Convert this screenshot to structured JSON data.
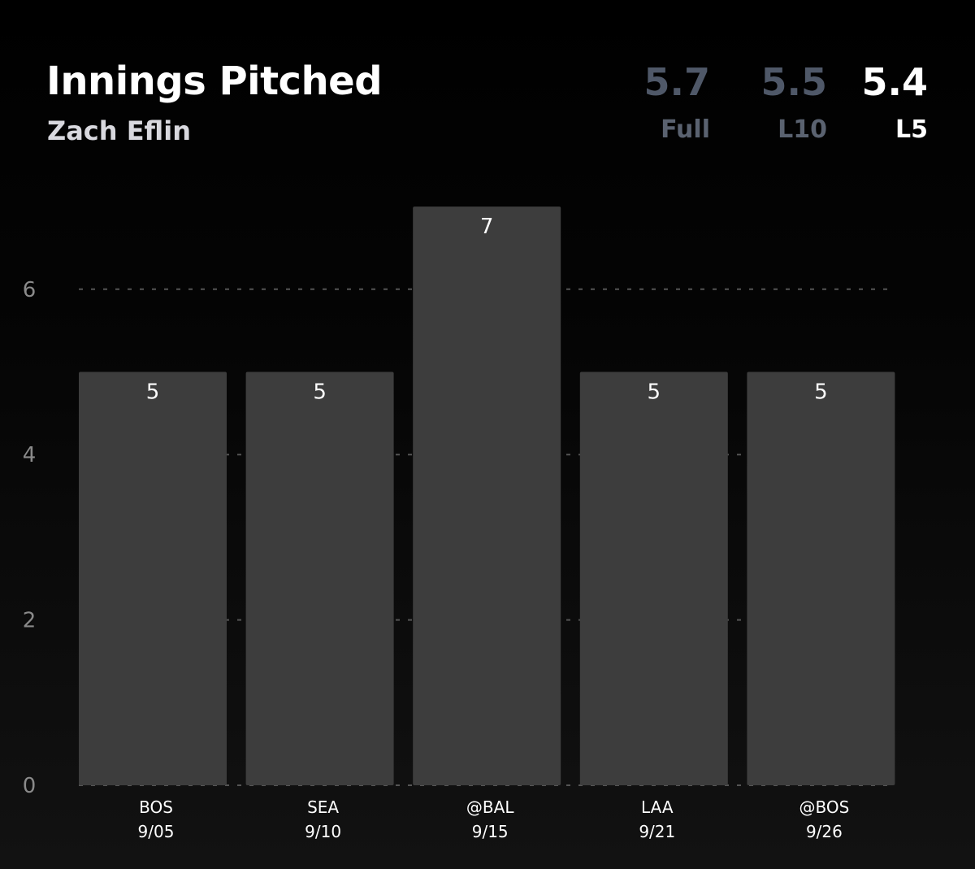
{
  "header": {
    "title": "Innings Pitched",
    "subtitle": "Zach Eflin"
  },
  "stats": [
    {
      "value": "5.7",
      "label": "Full",
      "color": "#4f5868",
      "label_color": "#5a6270"
    },
    {
      "value": "5.5",
      "label": "L10",
      "color": "#4f5868",
      "label_color": "#5a6270"
    },
    {
      "value": "5.4",
      "label": "L5",
      "color": "#ffffff",
      "label_color": "#ffffff"
    }
  ],
  "colors": {
    "bar": "#3d3d3d",
    "grid": "#555555",
    "axis_text": "#8a8a8a",
    "label_text": "#ffffff"
  },
  "chart_data": {
    "type": "bar",
    "title": "Innings Pitched",
    "subtitle": "Zach Eflin",
    "categories": [
      {
        "opponent": "BOS",
        "date": "9/05"
      },
      {
        "opponent": "SEA",
        "date": "9/10"
      },
      {
        "opponent": "@BAL",
        "date": "9/15"
      },
      {
        "opponent": "LAA",
        "date": "9/21"
      },
      {
        "opponent": "@BOS",
        "date": "9/26"
      }
    ],
    "values": [
      5,
      5,
      7,
      5,
      5
    ],
    "data_labels": [
      "5",
      "5",
      "7",
      "5",
      "5"
    ],
    "y_ticks": [
      0,
      2,
      4,
      6
    ],
    "ylim": [
      0,
      7
    ],
    "grid": "horizontal dashed",
    "legend": "none"
  }
}
